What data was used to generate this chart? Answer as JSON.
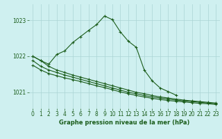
{
  "title": "Graphe pression niveau de la mer (hPa)",
  "background_color": "#cff0f0",
  "grid_color": "#aad4d4",
  "line_color": "#1a5c1a",
  "ylim": [
    1020.55,
    1023.45
  ],
  "yticks": [
    1021,
    1022,
    1023
  ],
  "xlim": [
    -0.5,
    23.5
  ],
  "xticks": [
    0,
    1,
    2,
    3,
    4,
    5,
    6,
    7,
    8,
    9,
    10,
    11,
    12,
    13,
    14,
    15,
    16,
    17,
    18,
    19,
    20,
    21,
    22,
    23
  ],
  "series_peak": {
    "x": [
      0,
      1,
      2,
      3,
      4,
      5,
      6,
      7,
      8,
      9,
      10,
      11,
      12,
      13,
      14,
      15,
      16,
      17,
      18
    ],
    "y": [
      1022.0,
      1021.88,
      1021.78,
      1022.05,
      1022.15,
      1022.38,
      1022.55,
      1022.72,
      1022.88,
      1023.12,
      1023.02,
      1022.68,
      1022.42,
      1022.25,
      1021.62,
      1021.32,
      1021.12,
      1021.02,
      1020.92
    ]
  },
  "series_flat1": {
    "x": [
      0,
      1,
      2,
      3,
      4,
      5,
      6,
      7,
      8,
      9,
      10,
      11,
      12,
      13,
      14,
      15,
      16,
      17,
      18,
      19,
      20,
      21,
      22,
      23
    ],
    "y": [
      1022.0,
      1021.88,
      1021.72,
      1021.62,
      1021.55,
      1021.48,
      1021.42,
      1021.36,
      1021.3,
      1021.24,
      1021.18,
      1021.12,
      1021.06,
      1021.0,
      1020.96,
      1020.91,
      1020.87,
      1020.84,
      1020.81,
      1020.78,
      1020.76,
      1020.74,
      1020.72,
      1020.7
    ]
  },
  "series_flat2": {
    "x": [
      0,
      1,
      2,
      3,
      4,
      5,
      6,
      7,
      8,
      9,
      10,
      11,
      12,
      13,
      14,
      15,
      16,
      17,
      18,
      19,
      20,
      21,
      22,
      23
    ],
    "y": [
      1021.88,
      1021.72,
      1021.62,
      1021.55,
      1021.48,
      1021.42,
      1021.36,
      1021.3,
      1021.24,
      1021.18,
      1021.12,
      1021.06,
      1021.0,
      1020.96,
      1020.91,
      1020.87,
      1020.84,
      1020.81,
      1020.78,
      1020.76,
      1020.74,
      1020.72,
      1020.7,
      1020.68
    ]
  },
  "series_flat3": {
    "x": [
      0,
      1,
      2,
      3,
      4,
      5,
      6,
      7,
      8,
      9,
      10,
      11,
      12,
      13,
      14,
      15,
      16,
      17,
      18,
      19,
      20,
      21,
      22,
      23
    ],
    "y": [
      1021.75,
      1021.62,
      1021.52,
      1021.46,
      1021.4,
      1021.35,
      1021.3,
      1021.24,
      1021.18,
      1021.13,
      1021.07,
      1021.01,
      1020.96,
      1020.91,
      1020.87,
      1020.83,
      1020.8,
      1020.77,
      1020.75,
      1020.73,
      1020.71,
      1020.69,
      1020.68,
      1020.66
    ]
  }
}
